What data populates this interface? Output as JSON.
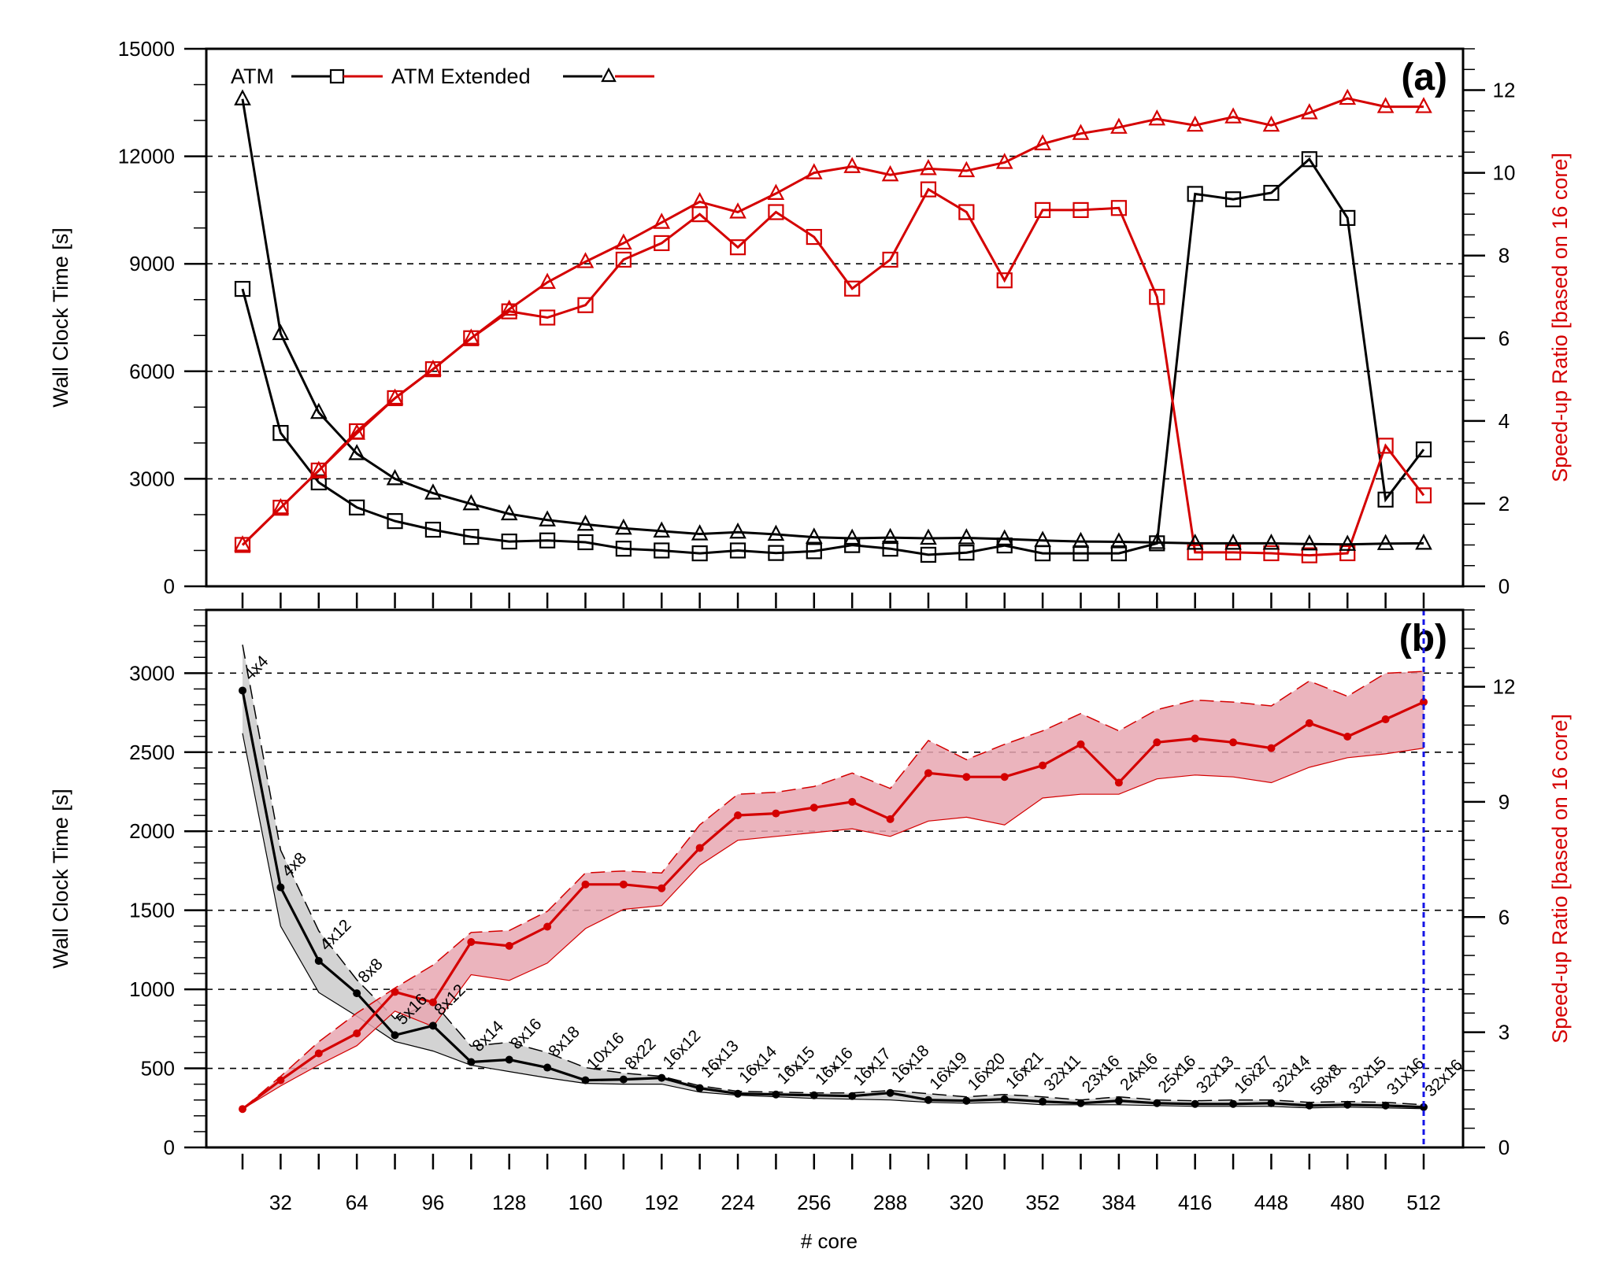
{
  "figure": {
    "xlabel": "# core",
    "x_tick_labels": [
      "32",
      "64",
      "96",
      "128",
      "160",
      "192",
      "224",
      "256",
      "288",
      "320",
      "352",
      "384",
      "416",
      "448",
      "480",
      "512"
    ]
  },
  "chart_data": [
    {
      "type": "line",
      "panel_label": "(a)",
      "ylabel_left": "Wall Clock Time [s]",
      "ylabel_right": "Speed-up Ratio [based on 16 core]",
      "xlim": [
        16,
        512
      ],
      "ylim_left": [
        0,
        15000
      ],
      "ylim_right": [
        0,
        13
      ],
      "left_ticks": [
        0,
        3000,
        6000,
        9000,
        12000,
        15000
      ],
      "right_ticks": [
        0,
        2,
        4,
        6,
        8,
        10,
        12
      ],
      "grid": "horizontal dashed",
      "legend": {
        "placement": "top-left",
        "entries": [
          "ATM",
          "ATM Extended"
        ]
      },
      "x": [
        16,
        32,
        48,
        64,
        80,
        96,
        112,
        128,
        144,
        160,
        176,
        192,
        208,
        224,
        240,
        256,
        272,
        288,
        304,
        320,
        336,
        352,
        368,
        384,
        400,
        416,
        432,
        448,
        464,
        480,
        496,
        512
      ],
      "series": [
        {
          "name": "ATM",
          "axis": "left",
          "color": "#000000",
          "marker": "square",
          "values": [
            8300,
            4280,
            2900,
            2200,
            1820,
            1580,
            1380,
            1250,
            1280,
            1230,
            1050,
            1000,
            920,
            1000,
            930,
            980,
            1150,
            1050,
            880,
            940,
            1140,
            920,
            920,
            920,
            1200,
            10950,
            10800,
            10980,
            11920,
            10280,
            2420,
            3820
          ]
        },
        {
          "name": "ATM",
          "axis": "right",
          "color": "#d40000",
          "marker": "square",
          "values": [
            1,
            1.9,
            2.8,
            3.75,
            4.55,
            5.25,
            6,
            6.65,
            6.5,
            6.8,
            7.9,
            8.3,
            9,
            8.2,
            9.05,
            8.45,
            7.2,
            7.9,
            9.6,
            9.05,
            7.4,
            9.1,
            9.1,
            9.15,
            7,
            0.82,
            0.82,
            0.8,
            0.75,
            0.8,
            3.4,
            2.2
          ]
        },
        {
          "name": "ATM Extended",
          "axis": "left",
          "color": "#000000",
          "marker": "triangle",
          "values": [
            13600,
            7050,
            4850,
            3700,
            3000,
            2600,
            2300,
            2020,
            1850,
            1730,
            1620,
            1540,
            1460,
            1510,
            1450,
            1370,
            1340,
            1360,
            1340,
            1350,
            1320,
            1280,
            1250,
            1240,
            1220,
            1200,
            1200,
            1200,
            1180,
            1170,
            1190,
            1200
          ]
        },
        {
          "name": "ATM Extended",
          "axis": "right",
          "color": "#d40000",
          "marker": "triangle",
          "values": [
            1,
            1.9,
            2.8,
            3.7,
            4.55,
            5.25,
            6,
            6.7,
            7.35,
            7.85,
            8.3,
            8.8,
            9.3,
            9.05,
            9.5,
            10,
            10.15,
            9.95,
            10.1,
            10.05,
            10.25,
            10.7,
            10.95,
            11.1,
            11.3,
            11.15,
            11.35,
            11.15,
            11.45,
            11.8,
            11.6,
            11.6
          ]
        }
      ]
    },
    {
      "type": "line",
      "panel_label": "(b)",
      "ylabel_left": "Wall Clock Time [s]",
      "ylabel_right": "Speed-up Ratio [based on 16 core]",
      "xlim": [
        16,
        512
      ],
      "ylim_left": [
        0,
        3400
      ],
      "ylim_right": [
        0,
        14
      ],
      "left_ticks": [
        0,
        500,
        1000,
        1500,
        2000,
        2500,
        3000
      ],
      "right_ticks": [
        0,
        3,
        6,
        9,
        12
      ],
      "grid": "horizontal dashed",
      "reference_line_x": 512,
      "x": [
        16,
        32,
        48,
        64,
        80,
        96,
        112,
        128,
        144,
        160,
        176,
        192,
        208,
        224,
        240,
        256,
        272,
        288,
        304,
        320,
        336,
        352,
        368,
        384,
        400,
        416,
        432,
        448,
        464,
        480,
        496,
        512
      ],
      "decompositions": [
        "4x4",
        "4x8",
        "4x12",
        "8x8",
        "5x16",
        "8x12",
        "8x14",
        "8x16",
        "8x18",
        "10x16",
        "8x22",
        "16x12",
        "16x13",
        "16x14",
        "16x15",
        "16x16",
        "16x17",
        "16x18",
        "16x19",
        "16x20",
        "16x21",
        "32x11",
        "23x16",
        "24x16",
        "25x16",
        "32x13",
        "16x27",
        "32x14",
        "58x8",
        "32x15",
        "31x16",
        "32x16"
      ],
      "series": [
        {
          "name": "wall_clock_mean",
          "axis": "left",
          "color": "#000000",
          "values": [
            2890,
            1645,
            1180,
            975,
            710,
            770,
            540,
            555,
            505,
            425,
            430,
            440,
            375,
            340,
            335,
            330,
            325,
            345,
            300,
            295,
            305,
            290,
            280,
            295,
            280,
            275,
            275,
            280,
            265,
            270,
            265,
            255
          ]
        },
        {
          "name": "wall_clock_min",
          "axis": "left",
          "values": [
            2620,
            1400,
            980,
            830,
            670,
            610,
            520,
            480,
            440,
            405,
            400,
            400,
            350,
            330,
            320,
            310,
            305,
            300,
            285,
            280,
            285,
            270,
            270,
            270,
            265,
            260,
            260,
            260,
            250,
            255,
            250,
            245
          ]
        },
        {
          "name": "wall_clock_max",
          "axis": "left",
          "values": [
            3180,
            1880,
            1370,
            1060,
            815,
            920,
            640,
            665,
            600,
            505,
            470,
            450,
            390,
            355,
            350,
            345,
            345,
            360,
            340,
            320,
            335,
            320,
            300,
            320,
            300,
            295,
            300,
            300,
            285,
            290,
            285,
            270
          ]
        },
        {
          "name": "speedup_mean",
          "axis": "right",
          "color": "#d40000",
          "values": [
            1,
            1.75,
            2.45,
            2.97,
            4.05,
            3.78,
            5.35,
            5.25,
            5.75,
            6.85,
            6.85,
            6.75,
            7.8,
            8.65,
            8.7,
            8.85,
            9,
            8.55,
            9.75,
            9.65,
            9.65,
            9.95,
            10.5,
            9.5,
            10.55,
            10.65,
            10.55,
            10.4,
            11.05,
            10.7,
            11.15,
            11.6
          ]
        },
        {
          "name": "speedup_min",
          "axis": "right",
          "values": [
            1,
            1.6,
            2.15,
            2.65,
            3.55,
            3.15,
            4.5,
            4.35,
            4.8,
            5.7,
            6.2,
            6.3,
            7.35,
            8,
            8.1,
            8.2,
            8.3,
            8.1,
            8.5,
            8.6,
            8.4,
            9.1,
            9.2,
            9.2,
            9.6,
            9.7,
            9.65,
            9.5,
            9.9,
            10.15,
            10.25,
            10.4
          ]
        },
        {
          "name": "speedup_max",
          "axis": "right",
          "values": [
            1,
            1.85,
            2.75,
            3.5,
            4.15,
            4.75,
            5.6,
            5.65,
            6.15,
            7.15,
            7.2,
            7.15,
            8.4,
            9.2,
            9.25,
            9.4,
            9.75,
            9.35,
            10.6,
            10.1,
            10.5,
            10.85,
            11.3,
            10.85,
            11.4,
            11.65,
            11.6,
            11.5,
            12.15,
            11.75,
            12.35,
            12.4
          ]
        }
      ]
    }
  ]
}
